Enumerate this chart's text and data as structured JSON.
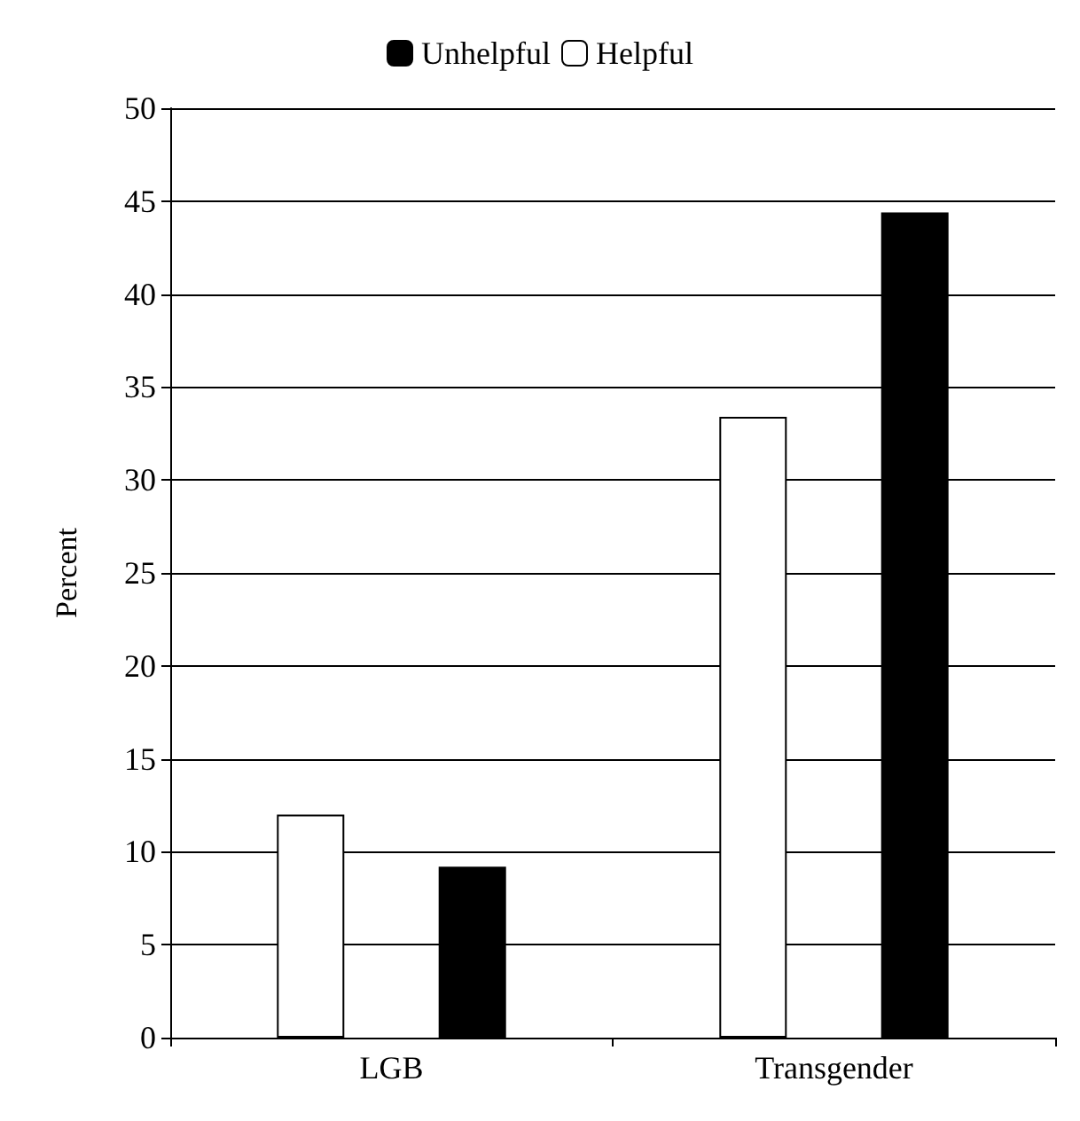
{
  "chart_data": {
    "type": "bar",
    "ylabel": "Percent",
    "categories": [
      "LGB",
      "Transgender"
    ],
    "series": [
      {
        "name": "Helpful",
        "color": "#ffffff",
        "values": [
          12,
          33.4
        ]
      },
      {
        "name": "Unhelpful",
        "color": "#000000",
        "values": [
          9.2,
          44.4
        ]
      }
    ],
    "ylim": [
      0,
      50
    ],
    "yticks": [
      0,
      5,
      10,
      15,
      20,
      25,
      30,
      35,
      40,
      45,
      50
    ],
    "grid": "y",
    "legend": "top"
  }
}
